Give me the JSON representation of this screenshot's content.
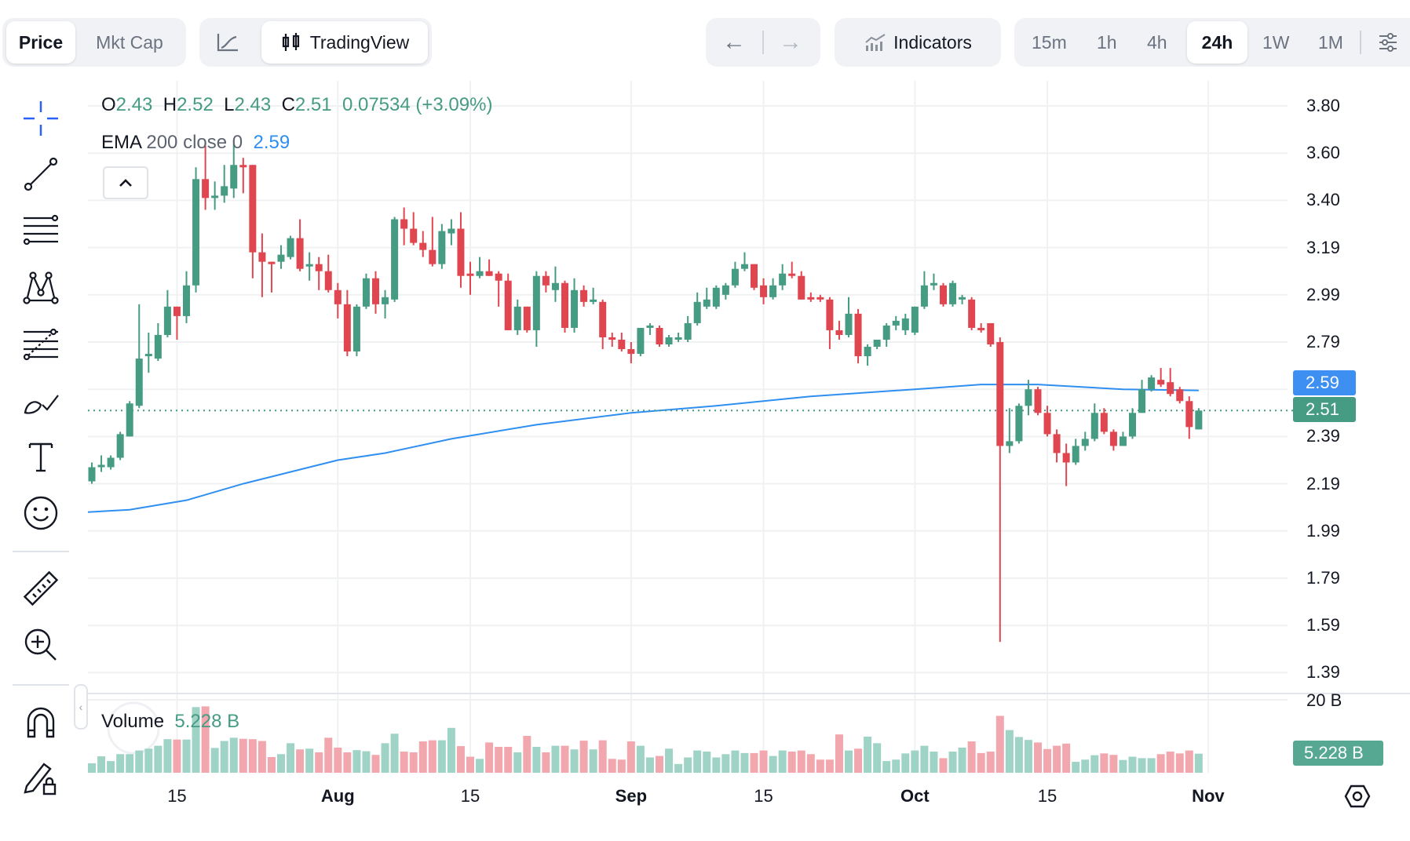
{
  "toolbar": {
    "price": "Price",
    "mkt_cap": "Mkt Cap",
    "tradingview": "TradingView",
    "indicators": "Indicators",
    "timeframes": [
      "15m",
      "1h",
      "4h",
      "24h",
      "1W",
      "1M"
    ],
    "active_timeframe": "24h"
  },
  "legend": {
    "o_label": "O",
    "o": "2.43",
    "h_label": "H",
    "h": "2.52",
    "l_label": "L",
    "l": "2.43",
    "c_label": "C",
    "c": "2.51",
    "change": "0.07534 (+3.09%)",
    "ema_label": "EMA",
    "ema_params": "200 close 0",
    "ema_value": "2.59"
  },
  "volume_legend": {
    "label": "Volume",
    "value": "5.228 B"
  },
  "price_axis": {
    "labels": [
      "3.80",
      "3.60",
      "3.40",
      "3.19",
      "2.99",
      "2.79",
      "2.59",
      "2.39",
      "2.19",
      "1.99",
      "1.79",
      "1.59",
      "1.39"
    ],
    "ema_tag": "2.59",
    "last_tag": "2.51"
  },
  "volume_axis": {
    "label": "20 B",
    "last_tag": "5.228 B"
  },
  "logo_text": "TV",
  "colors": {
    "up": "#469b83",
    "down": "#e0464f",
    "up_volume": "#9fd3c6",
    "down_volume": "#f2a7ae",
    "ema": "#2f8ff0",
    "accent": "#2962ff"
  },
  "chart_data": {
    "type": "candlestick",
    "title": "",
    "ylim": [
      1.39,
      3.8
    ],
    "volume_max": 20,
    "volume_unit": "B",
    "last_price": 2.51,
    "x_ticks": [
      {
        "label": "15",
        "index": 9,
        "bold": false
      },
      {
        "label": "Aug",
        "index": 26,
        "bold": true
      },
      {
        "label": "15",
        "index": 40,
        "bold": false
      },
      {
        "label": "Sep",
        "index": 57,
        "bold": true
      },
      {
        "label": "15",
        "index": 71,
        "bold": false
      },
      {
        "label": "Oct",
        "index": 87,
        "bold": true
      },
      {
        "label": "15",
        "index": 101,
        "bold": false
      },
      {
        "label": "Nov",
        "index": 118,
        "bold": true
      }
    ],
    "ohlc": [
      [
        2.21,
        2.29,
        2.2,
        2.27
      ],
      [
        2.27,
        2.32,
        2.25,
        2.28
      ],
      [
        2.27,
        2.32,
        2.26,
        2.31
      ],
      [
        2.31,
        2.42,
        2.3,
        2.41
      ],
      [
        2.4,
        2.55,
        2.4,
        2.54
      ],
      [
        2.53,
        2.96,
        2.52,
        2.73
      ],
      [
        2.74,
        2.84,
        2.67,
        2.75
      ],
      [
        2.73,
        2.88,
        2.72,
        2.83
      ],
      [
        2.83,
        3.02,
        2.82,
        2.95
      ],
      [
        2.95,
        2.95,
        2.81,
        2.91
      ],
      [
        2.91,
        3.1,
        2.88,
        3.04
      ],
      [
        3.04,
        3.54,
        3.01,
        3.49
      ],
      [
        3.49,
        3.63,
        3.36,
        3.41
      ],
      [
        3.41,
        3.48,
        3.36,
        3.42
      ],
      [
        3.42,
        3.55,
        3.39,
        3.46
      ],
      [
        3.45,
        3.64,
        3.41,
        3.55
      ],
      [
        3.55,
        3.58,
        3.43,
        3.54
      ],
      [
        3.55,
        3.55,
        3.07,
        3.18
      ],
      [
        3.18,
        3.26,
        2.99,
        3.14
      ],
      [
        3.14,
        3.14,
        3.01,
        3.13
      ],
      [
        3.14,
        3.21,
        3.11,
        3.17
      ],
      [
        3.16,
        3.25,
        3.15,
        3.24
      ],
      [
        3.24,
        3.32,
        3.1,
        3.11
      ],
      [
        3.12,
        3.18,
        3.06,
        3.13
      ],
      [
        3.13,
        3.16,
        3.02,
        3.1
      ],
      [
        3.1,
        3.17,
        3.01,
        3.02
      ],
      [
        3.02,
        3.05,
        2.9,
        2.96
      ],
      [
        2.96,
        3.02,
        2.74,
        2.76
      ],
      [
        2.76,
        2.96,
        2.74,
        2.95
      ],
      [
        2.95,
        3.09,
        2.94,
        3.07
      ],
      [
        3.07,
        3.1,
        2.92,
        2.96
      ],
      [
        2.96,
        3.02,
        2.9,
        2.99
      ],
      [
        2.98,
        3.33,
        2.97,
        3.32
      ],
      [
        3.32,
        3.37,
        3.21,
        3.28
      ],
      [
        3.28,
        3.35,
        3.21,
        3.22
      ],
      [
        3.22,
        3.27,
        3.16,
        3.19
      ],
      [
        3.19,
        3.33,
        3.12,
        3.13
      ],
      [
        3.13,
        3.3,
        3.11,
        3.27
      ],
      [
        3.26,
        3.32,
        3.21,
        3.28
      ],
      [
        3.28,
        3.35,
        3.03,
        3.08
      ],
      [
        3.09,
        3.14,
        3.0,
        3.08
      ],
      [
        3.08,
        3.16,
        3.07,
        3.1
      ],
      [
        3.1,
        3.15,
        3.08,
        3.08
      ],
      [
        3.09,
        3.1,
        2.95,
        3.06
      ],
      [
        3.06,
        3.09,
        2.85,
        2.85
      ],
      [
        2.85,
        2.98,
        2.83,
        2.95
      ],
      [
        2.95,
        2.95,
        2.84,
        2.85
      ],
      [
        2.85,
        3.1,
        2.78,
        3.08
      ],
      [
        3.08,
        3.1,
        3.01,
        3.04
      ],
      [
        3.02,
        3.12,
        2.97,
        3.05
      ],
      [
        3.05,
        3.06,
        2.84,
        2.86
      ],
      [
        2.86,
        3.07,
        2.84,
        3.02
      ],
      [
        3.02,
        3.04,
        2.95,
        2.97
      ],
      [
        2.97,
        3.03,
        2.96,
        2.98
      ],
      [
        2.97,
        2.98,
        2.77,
        2.82
      ],
      [
        2.82,
        2.84,
        2.78,
        2.81
      ],
      [
        2.81,
        2.84,
        2.76,
        2.77
      ],
      [
        2.77,
        2.8,
        2.71,
        2.75
      ],
      [
        2.75,
        2.86,
        2.74,
        2.86
      ],
      [
        2.86,
        2.88,
        2.83,
        2.87
      ],
      [
        2.86,
        2.87,
        2.78,
        2.79
      ],
      [
        2.79,
        2.83,
        2.78,
        2.82
      ],
      [
        2.81,
        2.84,
        2.8,
        2.82
      ],
      [
        2.81,
        2.91,
        2.8,
        2.88
      ],
      [
        2.88,
        3.01,
        2.87,
        2.97
      ],
      [
        2.95,
        3.03,
        2.94,
        2.98
      ],
      [
        2.95,
        3.04,
        2.94,
        3.03
      ],
      [
        3.0,
        3.05,
        2.98,
        3.04
      ],
      [
        3.04,
        3.14,
        3.03,
        3.11
      ],
      [
        3.11,
        3.18,
        3.1,
        3.13
      ],
      [
        3.13,
        3.13,
        3.02,
        3.03
      ],
      [
        3.04,
        3.07,
        2.96,
        2.99
      ],
      [
        2.99,
        3.07,
        2.98,
        3.04
      ],
      [
        3.04,
        3.13,
        3.02,
        3.09
      ],
      [
        3.09,
        3.14,
        3.07,
        3.08
      ],
      [
        3.08,
        3.1,
        2.98,
        2.98
      ],
      [
        2.99,
        3.01,
        2.97,
        2.98
      ],
      [
        2.99,
        3.0,
        2.97,
        2.98
      ],
      [
        2.98,
        2.99,
        2.77,
        2.85
      ],
      [
        2.85,
        2.89,
        2.81,
        2.83
      ],
      [
        2.83,
        2.99,
        2.82,
        2.92
      ],
      [
        2.92,
        2.94,
        2.71,
        2.74
      ],
      [
        2.74,
        2.79,
        2.7,
        2.78
      ],
      [
        2.78,
        2.81,
        2.77,
        2.81
      ],
      [
        2.81,
        2.88,
        2.78,
        2.87
      ],
      [
        2.87,
        2.91,
        2.85,
        2.89
      ],
      [
        2.85,
        2.92,
        2.83,
        2.9
      ],
      [
        2.84,
        2.95,
        2.83,
        2.95
      ],
      [
        2.95,
        3.1,
        2.94,
        3.04
      ],
      [
        3.04,
        3.09,
        3.02,
        3.05
      ],
      [
        3.04,
        3.05,
        2.95,
        2.96
      ],
      [
        2.96,
        3.06,
        2.95,
        3.05
      ],
      [
        2.98,
        3.0,
        2.96,
        2.99
      ],
      [
        2.98,
        2.99,
        2.85,
        2.86
      ],
      [
        2.86,
        2.88,
        2.84,
        2.85
      ],
      [
        2.88,
        2.88,
        2.78,
        2.79
      ],
      [
        2.8,
        2.82,
        1.53,
        2.36
      ],
      [
        2.36,
        2.52,
        2.33,
        2.38
      ],
      [
        2.38,
        2.54,
        2.37,
        2.53
      ],
      [
        2.53,
        2.64,
        2.49,
        2.6
      ],
      [
        2.6,
        2.61,
        2.49,
        2.5
      ],
      [
        2.5,
        2.53,
        2.4,
        2.41
      ],
      [
        2.41,
        2.43,
        2.29,
        2.33
      ],
      [
        2.33,
        2.37,
        2.19,
        2.29
      ],
      [
        2.29,
        2.39,
        2.28,
        2.36
      ],
      [
        2.36,
        2.42,
        2.34,
        2.39
      ],
      [
        2.39,
        2.54,
        2.38,
        2.5
      ],
      [
        2.5,
        2.52,
        2.41,
        2.42
      ],
      [
        2.42,
        2.43,
        2.34,
        2.36
      ],
      [
        2.36,
        2.42,
        2.36,
        2.4
      ],
      [
        2.4,
        2.52,
        2.39,
        2.5
      ],
      [
        2.5,
        2.64,
        2.5,
        2.6
      ],
      [
        2.6,
        2.66,
        2.59,
        2.65
      ],
      [
        2.64,
        2.69,
        2.61,
        2.62
      ],
      [
        2.63,
        2.69,
        2.57,
        2.58
      ],
      [
        2.6,
        2.61,
        2.54,
        2.55
      ],
      [
        2.55,
        2.57,
        2.39,
        2.44
      ],
      [
        2.43,
        2.52,
        2.43,
        2.51
      ]
    ],
    "volume": [
      2.6,
      4.5,
      3.2,
      5.1,
      5.1,
      6.1,
      6.6,
      7.4,
      9.2,
      9.1,
      9.1,
      18.0,
      18.2,
      6.8,
      8.7,
      9.6,
      9.3,
      9.2,
      8.7,
      4.3,
      5.1,
      8.1,
      6.4,
      6.6,
      5.6,
      9.6,
      6.9,
      5.6,
      6.2,
      5.9,
      4.9,
      8.1,
      10.7,
      5.8,
      5.6,
      8.6,
      8.9,
      8.9,
      12.3,
      7.3,
      4.4,
      3.8,
      8.3,
      7.1,
      7.1,
      5.6,
      10.1,
      7.1,
      5.6,
      7.4,
      7.4,
      6.4,
      8.8,
      6.4,
      8.9,
      3.8,
      3.6,
      8.6,
      7.4,
      4.2,
      4.6,
      6.6,
      2.4,
      4.2,
      6.1,
      5.8,
      4.2,
      5.1,
      6.1,
      5.4,
      5.4,
      6.1,
      4.6,
      6.1,
      5.8,
      6.1,
      5.1,
      3.6,
      3.6,
      10.5,
      6.1,
      6.6,
      9.9,
      8.1,
      3.2,
      3.6,
      5.3,
      6.1,
      7.4,
      5.8,
      4.0,
      5.8,
      6.9,
      8.6,
      5.4,
      5.8,
      15.6,
      11.7,
      9.8,
      9.0,
      8.3,
      6.5,
      7.4,
      8.0,
      3.0,
      3.6,
      4.8,
      5.3,
      4.9,
      3.5,
      4.4,
      4.0,
      4.0,
      5.1,
      5.8,
      5.3,
      6.1,
      5.228
    ],
    "ema_200": [
      [
        0,
        2.08
      ],
      [
        4,
        2.09
      ],
      [
        10,
        2.13
      ],
      [
        16,
        2.2
      ],
      [
        26,
        2.3
      ],
      [
        31,
        2.33
      ],
      [
        38,
        2.39
      ],
      [
        47,
        2.45
      ],
      [
        57,
        2.5
      ],
      [
        66,
        2.53
      ],
      [
        76,
        2.57
      ],
      [
        87,
        2.6
      ],
      [
        94,
        2.62
      ],
      [
        100,
        2.62
      ],
      [
        109,
        2.6
      ],
      [
        117,
        2.595
      ]
    ]
  }
}
